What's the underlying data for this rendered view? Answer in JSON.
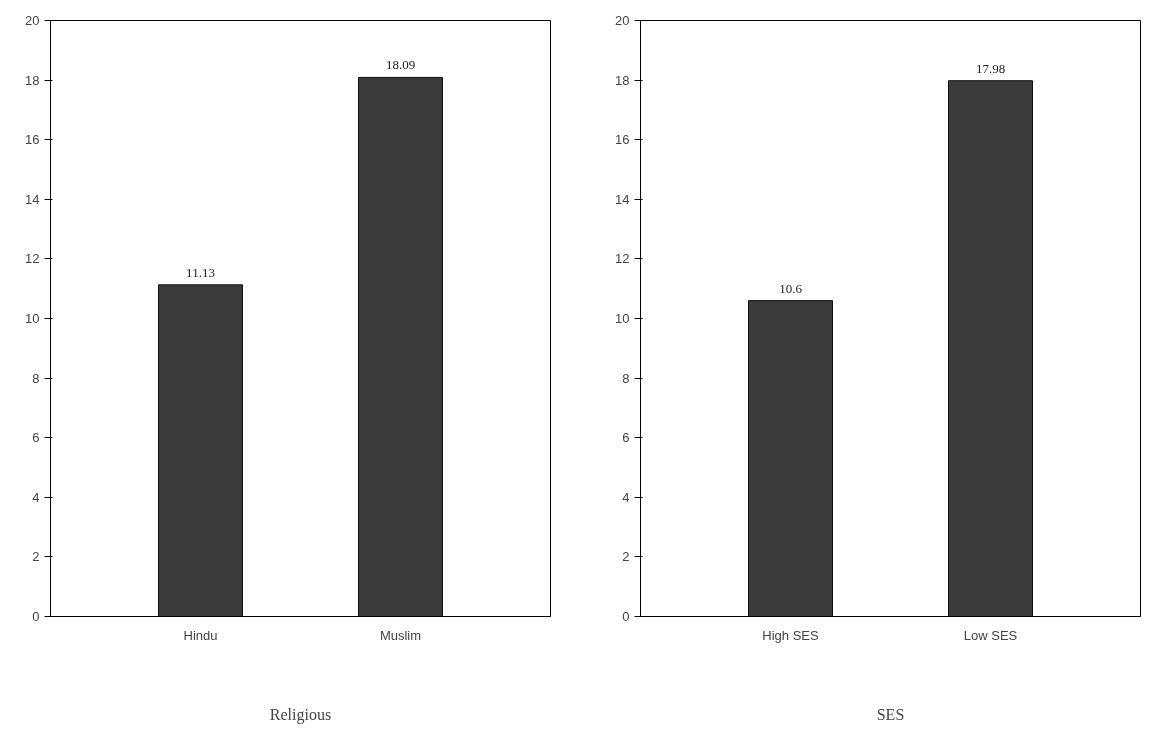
{
  "chart_data": [
    {
      "type": "bar",
      "xlabel": "Religious",
      "categories": [
        "Hindu",
        "Muslim"
      ],
      "values": [
        11.13,
        18.09
      ],
      "color": "#3a3a3a",
      "ylim": [
        0,
        20
      ],
      "yticks": [
        0,
        2,
        4,
        6,
        8,
        10,
        12,
        14,
        16,
        18,
        20
      ],
      "data_labels": true
    },
    {
      "type": "bar",
      "xlabel": "SES",
      "categories": [
        "High SES",
        "Low SES"
      ],
      "values": [
        10.6,
        17.98
      ],
      "color": "#3a3a3a",
      "ylim": [
        0,
        20
      ],
      "yticks": [
        0,
        2,
        4,
        6,
        8,
        10,
        12,
        14,
        16,
        18,
        20
      ],
      "data_labels": true
    }
  ]
}
